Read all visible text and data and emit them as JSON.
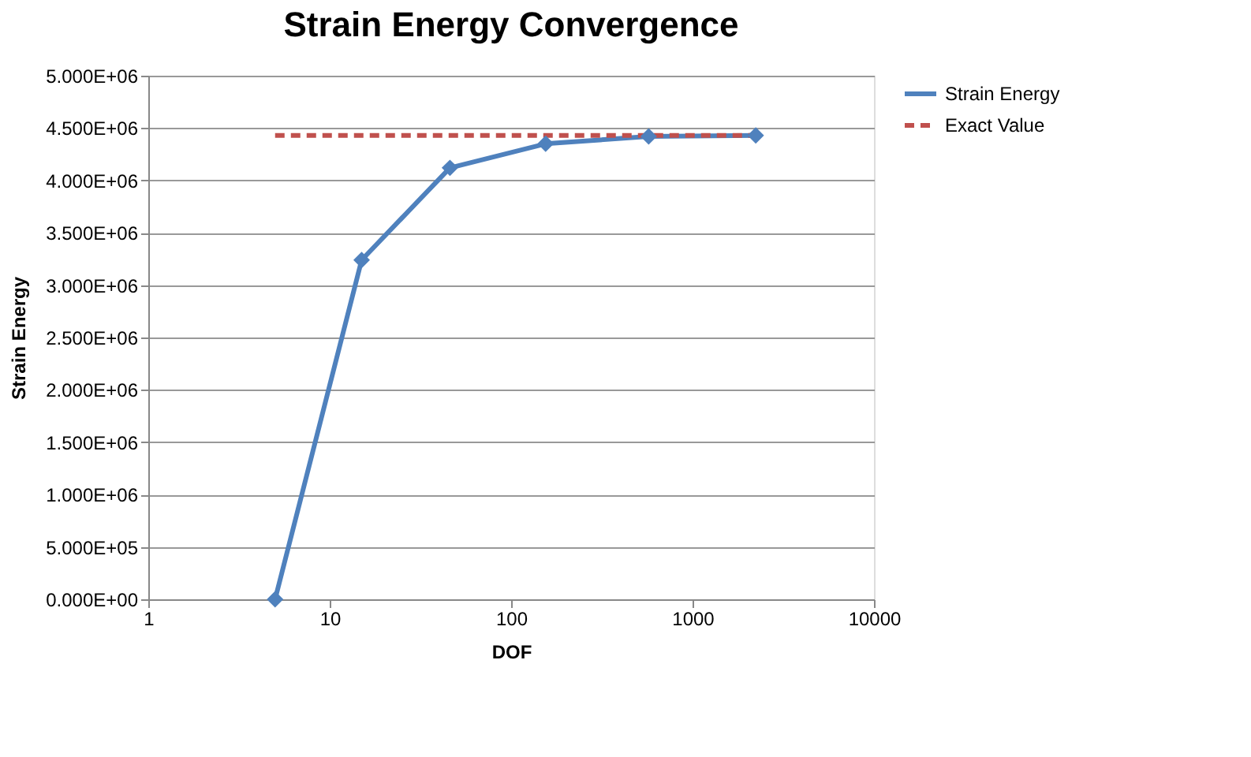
{
  "chart_data": {
    "type": "line",
    "title": "Strain Energy Convergence",
    "xlabel": "DOF",
    "ylabel": "Strain Energy",
    "log": "x",
    "xlim": [
      1,
      10000
    ],
    "xticks": [
      1,
      10,
      100,
      1000,
      10000
    ],
    "ylim": [
      0,
      5000000
    ],
    "yticks": [
      {
        "value": 0,
        "label": "0.000E+00"
      },
      {
        "value": 500000,
        "label": "5.000E+05"
      },
      {
        "value": 1000000,
        "label": "1.000E+06"
      },
      {
        "value": 1500000,
        "label": "1.500E+06"
      },
      {
        "value": 2000000,
        "label": "2.000E+06"
      },
      {
        "value": 2500000,
        "label": "2.500E+06"
      },
      {
        "value": 3000000,
        "label": "3.000E+06"
      },
      {
        "value": 3500000,
        "label": "3.500E+06"
      },
      {
        "value": 4000000,
        "label": "4.000E+06"
      },
      {
        "value": 4500000,
        "label": "4.500E+06"
      },
      {
        "value": 5000000,
        "label": "5.000E+06"
      }
    ],
    "grid": "y",
    "legend": "right",
    "series": [
      {
        "name": "Strain Energy",
        "color": "#4f81bd",
        "marker": "diamond",
        "line_style": "solid",
        "x": [
          5,
          15,
          46,
          155,
          573,
          2230
        ],
        "values": [
          0,
          3240000,
          4120000,
          4350000,
          4420000,
          4430000
        ]
      },
      {
        "name": "Exact Value",
        "color": "#c0504d",
        "marker": "none",
        "line_style": "dashed",
        "x": [
          5,
          2230
        ],
        "values": [
          4430000,
          4430000
        ]
      }
    ]
  }
}
